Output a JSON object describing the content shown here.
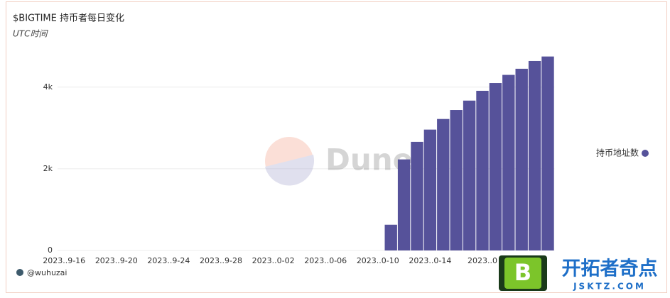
{
  "chart_data": {
    "type": "bar",
    "title": "$BIGTIME 持币者每日变化",
    "subtitle": "UTC时间",
    "categories": [
      "2023..9-16",
      null,
      null,
      null,
      "2023..9-20",
      null,
      null,
      null,
      "2023..9-24",
      null,
      null,
      null,
      "2023..9-28",
      null,
      null,
      null,
      "2023..0-02",
      null,
      null,
      null,
      "2023..0-06",
      null,
      null,
      null,
      "2023..0-10",
      null,
      null,
      null,
      "2023..0-14",
      null,
      null,
      null,
      "2023..0",
      null,
      null,
      null,
      null,
      null
    ],
    "series": [
      {
        "name": "持币地址数",
        "color": "#56529a",
        "values": [
          null,
          null,
          null,
          null,
          null,
          null,
          null,
          null,
          null,
          null,
          null,
          null,
          null,
          null,
          null,
          null,
          null,
          null,
          null,
          null,
          null,
          null,
          null,
          null,
          null,
          630,
          2230,
          2660,
          2960,
          3220,
          3440,
          3670,
          3910,
          4100,
          4300,
          4450,
          4640,
          4750
        ]
      }
    ],
    "ylim": [
      0,
      4900
    ],
    "yticks": [
      0,
      {
        "value": 2000,
        "label": "2k"
      },
      {
        "value": 4000,
        "label": "4k"
      }
    ],
    "grid": true,
    "legend": "right",
    "author": "@wuhuzai",
    "watermark": "Dune"
  },
  "overlay": {
    "brand": "开拓者奇点",
    "site": "JSKTZ.COM",
    "icon": "B"
  }
}
